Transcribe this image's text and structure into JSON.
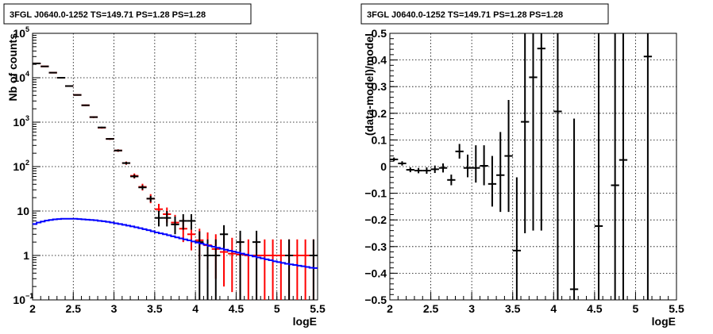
{
  "chart_data": [
    {
      "type": "scatter",
      "title": "3FGL J0640.0-1252 TS=149.71 PS=1.28 PS=1.28",
      "xlabel": "logE",
      "ylabel": "Nb of counts",
      "xlim": [
        2,
        5.5
      ],
      "ylim": [
        0.1,
        100000
      ],
      "yscale": "log",
      "grid": true,
      "x_ticks": [
        2,
        2.5,
        3,
        3.5,
        4,
        4.5,
        5,
        5.5
      ],
      "x_tick_labels": [
        "2",
        "2.5",
        "3",
        "3.5",
        "4",
        "4.5",
        "5",
        "5.5"
      ],
      "y_tick_labels": [
        {
          "value": 0.1,
          "label": "10",
          "exp": "−1"
        },
        {
          "value": 1,
          "label": "1",
          "exp": ""
        },
        {
          "value": 10,
          "label": "10",
          "exp": ""
        },
        {
          "value": 100,
          "label": "10",
          "exp": "2"
        },
        {
          "value": 1000,
          "label": "10",
          "exp": "3"
        },
        {
          "value": 10000,
          "label": "10",
          "exp": "4"
        },
        {
          "value": 100000,
          "label": "10",
          "exp": "5"
        }
      ],
      "bin_width": 0.1,
      "series": [
        {
          "color": "#ff0000",
          "points": [
            {
              "x": 2.05,
              "y": 21000,
              "ylo": 20500,
              "yhi": 21500
            },
            {
              "x": 2.15,
              "y": 18000,
              "ylo": 17600,
              "yhi": 18400
            },
            {
              "x": 2.25,
              "y": 13000,
              "ylo": 12700,
              "yhi": 13300
            },
            {
              "x": 2.35,
              "y": 10000,
              "ylo": 9800,
              "yhi": 10200
            },
            {
              "x": 2.45,
              "y": 6500,
              "ylo": 6300,
              "yhi": 6700
            },
            {
              "x": 2.55,
              "y": 4100,
              "ylo": 3950,
              "yhi": 4250
            },
            {
              "x": 2.65,
              "y": 2400,
              "ylo": 2300,
              "yhi": 2500
            },
            {
              "x": 2.75,
              "y": 1300,
              "ylo": 1240,
              "yhi": 1360
            },
            {
              "x": 2.85,
              "y": 750,
              "ylo": 715,
              "yhi": 785
            },
            {
              "x": 2.95,
              "y": 420,
              "ylo": 400,
              "yhi": 440
            },
            {
              "x": 3.05,
              "y": 230,
              "ylo": 215,
              "yhi": 245
            },
            {
              "x": 3.15,
              "y": 120,
              "ylo": 110,
              "yhi": 130
            },
            {
              "x": 3.25,
              "y": 62,
              "ylo": 54,
              "yhi": 70
            },
            {
              "x": 3.35,
              "y": 35,
              "ylo": 29,
              "yhi": 41
            },
            {
              "x": 3.45,
              "y": 19,
              "ylo": 15,
              "yhi": 24
            },
            {
              "x": 3.55,
              "y": 11,
              "ylo": 7.5,
              "yhi": 14.5
            },
            {
              "x": 3.65,
              "y": 8.5,
              "ylo": 5.5,
              "yhi": 12
            },
            {
              "x": 3.75,
              "y": 5.5,
              "ylo": 3.2,
              "yhi": 8.2
            },
            {
              "x": 3.85,
              "y": 4,
              "ylo": 2,
              "yhi": 6.5
            },
            {
              "x": 3.95,
              "y": 3,
              "ylo": 1.3,
              "yhi": 5
            },
            {
              "x": 4.05,
              "y": 2.2,
              "ylo": 0.8,
              "yhi": 4
            },
            {
              "x": 4.15,
              "y": 1.7,
              "ylo": 0.5,
              "yhi": 3.3
            },
            {
              "x": 4.25,
              "y": 1.4,
              "ylo": 0.3,
              "yhi": 3
            },
            {
              "x": 4.35,
              "y": 1.2,
              "ylo": 0.2,
              "yhi": 2.7
            },
            {
              "x": 4.45,
              "y": 1.1,
              "ylo": 0.15,
              "yhi": 2.5
            },
            {
              "x": 4.55,
              "y": 1.05,
              "ylo": 0.1,
              "yhi": 2.4
            },
            {
              "x": 4.65,
              "y": 1,
              "ylo": 0.1,
              "yhi": 2.3
            },
            {
              "x": 4.75,
              "y": 1,
              "ylo": 0.1,
              "yhi": 2.3
            },
            {
              "x": 4.85,
              "y": 1,
              "ylo": 0.1,
              "yhi": 2.3
            },
            {
              "x": 4.95,
              "y": 1,
              "ylo": 0.1,
              "yhi": 2.3
            },
            {
              "x": 5.05,
              "y": 1,
              "ylo": 0.1,
              "yhi": 2.3
            },
            {
              "x": 5.15,
              "y": 1,
              "ylo": 0.1,
              "yhi": 2.3
            },
            {
              "x": 5.25,
              "y": 1,
              "ylo": 0.1,
              "yhi": 2.3
            },
            {
              "x": 5.35,
              "y": 1,
              "ylo": 0.1,
              "yhi": 2.3
            },
            {
              "x": 5.45,
              "y": 1,
              "ylo": 0.1,
              "yhi": 2.3
            }
          ]
        },
        {
          "color": "#000000",
          "points": [
            {
              "x": 2.05,
              "y": 21000,
              "ylo": 20800,
              "yhi": 21200
            },
            {
              "x": 2.15,
              "y": 18000,
              "ylo": 17800,
              "yhi": 18200
            },
            {
              "x": 2.25,
              "y": 13000,
              "ylo": 12800,
              "yhi": 13200
            },
            {
              "x": 2.35,
              "y": 10000,
              "ylo": 9850,
              "yhi": 10150
            },
            {
              "x": 2.45,
              "y": 6500,
              "ylo": 6380,
              "yhi": 6620
            },
            {
              "x": 2.55,
              "y": 4100,
              "ylo": 4000,
              "yhi": 4200
            },
            {
              "x": 2.65,
              "y": 2400,
              "ylo": 2330,
              "yhi": 2470
            },
            {
              "x": 2.75,
              "y": 1300,
              "ylo": 1260,
              "yhi": 1340
            },
            {
              "x": 2.85,
              "y": 760,
              "ylo": 735,
              "yhi": 785
            },
            {
              "x": 2.95,
              "y": 420,
              "ylo": 405,
              "yhi": 435
            },
            {
              "x": 3.05,
              "y": 230,
              "ylo": 218,
              "yhi": 242
            },
            {
              "x": 3.15,
              "y": 120,
              "ylo": 112,
              "yhi": 128
            },
            {
              "x": 3.25,
              "y": 60,
              "ylo": 55,
              "yhi": 66
            },
            {
              "x": 3.35,
              "y": 34,
              "ylo": 30,
              "yhi": 38
            },
            {
              "x": 3.45,
              "y": 19,
              "ylo": 16,
              "yhi": 22
            },
            {
              "x": 3.55,
              "y": 7,
              "ylo": 4.5,
              "yhi": 10
            },
            {
              "x": 3.65,
              "y": 7,
              "ylo": 4.5,
              "yhi": 10
            },
            {
              "x": 3.75,
              "y": 5,
              "ylo": 3,
              "yhi": 7.5
            },
            {
              "x": 3.85,
              "y": 6,
              "ylo": 3.8,
              "yhi": 8.5
            },
            {
              "x": 3.95,
              "y": 6,
              "ylo": 3.8,
              "yhi": 8.5
            },
            {
              "x": 4.05,
              "y": 2,
              "ylo": 0.1,
              "yhi": 3.5
            },
            {
              "x": 4.15,
              "y": 1,
              "ylo": 0.1,
              "yhi": 2.3
            },
            {
              "x": 4.25,
              "y": 1,
              "ylo": 0.1,
              "yhi": 2.3
            },
            {
              "x": 4.35,
              "y": 3,
              "ylo": 1.3,
              "yhi": 4.8
            },
            {
              "x": 4.55,
              "y": 2,
              "ylo": 0.1,
              "yhi": 3.6
            },
            {
              "x": 4.75,
              "y": 2,
              "ylo": 0.1,
              "yhi": 3.6
            },
            {
              "x": 5.15,
              "y": 1,
              "ylo": 0.1,
              "yhi": 2.3
            },
            {
              "x": 5.45,
              "y": 1,
              "ylo": 0.1,
              "yhi": 2.3
            }
          ]
        },
        {
          "color": "#0000ff",
          "style": "step",
          "bin_edges": [
            2.0,
            2.05,
            2.1,
            2.15,
            2.2,
            2.25,
            2.3,
            2.35,
            2.4,
            2.45,
            2.5,
            2.55,
            2.6,
            2.65,
            2.7,
            2.75,
            2.8,
            2.85,
            2.9,
            2.95,
            3.0,
            3.05,
            3.1,
            3.15,
            3.2,
            3.25,
            3.3,
            3.35,
            3.4,
            3.45,
            3.5,
            3.55,
            3.6,
            3.65,
            3.7,
            3.75,
            3.8,
            3.85,
            3.9,
            3.95,
            4.0,
            4.05,
            4.1,
            4.15,
            4.2,
            4.25,
            4.3,
            4.35,
            4.4,
            4.45,
            4.5,
            4.55,
            4.6,
            4.65,
            4.7,
            4.75,
            4.8,
            4.85,
            4.9,
            4.95,
            5.0,
            5.05,
            5.1,
            5.15,
            5.2,
            5.25,
            5.3,
            5.35,
            5.4,
            5.45,
            5.5
          ],
          "values": [
            5.1,
            5.5,
            5.8,
            6.1,
            6.3,
            6.5,
            6.6,
            6.7,
            6.7,
            6.7,
            6.7,
            6.6,
            6.5,
            6.4,
            6.3,
            6.2,
            6.0,
            5.9,
            5.7,
            5.5,
            5.3,
            5.1,
            4.9,
            4.7,
            4.5,
            4.3,
            4.1,
            3.9,
            3.7,
            3.5,
            3.3,
            3.15,
            3.0,
            2.85,
            2.7,
            2.55,
            2.42,
            2.3,
            2.18,
            2.06,
            1.95,
            1.85,
            1.75,
            1.65,
            1.57,
            1.49,
            1.42,
            1.35,
            1.28,
            1.22,
            1.16,
            1.1,
            1.05,
            1.0,
            0.95,
            0.9,
            0.86,
            0.82,
            0.78,
            0.74,
            0.71,
            0.68,
            0.65,
            0.63,
            0.61,
            0.59,
            0.57,
            0.55,
            0.53,
            0.52
          ]
        }
      ]
    },
    {
      "type": "scatter",
      "title": "3FGL J0640.0-1252 TS=149.71 PS=1.28 PS=1.28",
      "xlabel": "logE",
      "ylabel": "(data-model)/model",
      "xlim": [
        2,
        5.5
      ],
      "ylim": [
        -0.5,
        0.5
      ],
      "grid": true,
      "x_ticks": [
        2,
        2.5,
        3,
        3.5,
        4,
        4.5,
        5,
        5.5
      ],
      "x_tick_labels": [
        "2",
        "2.5",
        "3",
        "3.5",
        "4",
        "4.5",
        "5",
        "5.5"
      ],
      "y_ticks": [
        -0.5,
        -0.4,
        -0.3,
        -0.2,
        -0.1,
        0,
        0.1,
        0.2,
        0.3,
        0.4,
        0.5
      ],
      "y_tick_labels": [
        "−0.5",
        "−0.4",
        "−0.3",
        "−0.2",
        "−0.1",
        "0",
        "0.1",
        "0.2",
        "0.3",
        "0.4",
        "0.5"
      ],
      "bin_width": 0.1,
      "series": [
        {
          "color": "#000000",
          "points": [
            {
              "x": 2.05,
              "y": 0.027,
              "ylo": 0.02,
              "yhi": 0.034
            },
            {
              "x": 2.15,
              "y": 0.012,
              "ylo": 0.004,
              "yhi": 0.02
            },
            {
              "x": 2.25,
              "y": -0.012,
              "ylo": -0.021,
              "yhi": -0.003
            },
            {
              "x": 2.35,
              "y": -0.015,
              "ylo": -0.025,
              "yhi": -0.005
            },
            {
              "x": 2.45,
              "y": -0.015,
              "ylo": -0.027,
              "yhi": -0.003
            },
            {
              "x": 2.55,
              "y": -0.01,
              "ylo": -0.024,
              "yhi": 0.004
            },
            {
              "x": 2.65,
              "y": -0.005,
              "ylo": -0.022,
              "yhi": 0.012
            },
            {
              "x": 2.75,
              "y": -0.05,
              "ylo": -0.07,
              "yhi": -0.03
            },
            {
              "x": 2.85,
              "y": 0.057,
              "ylo": 0.03,
              "yhi": 0.085
            },
            {
              "x": 2.95,
              "y": -0.005,
              "ylo": -0.04,
              "yhi": 0.045
            },
            {
              "x": 3.05,
              "y": -0.005,
              "ylo": -0.06,
              "yhi": 0.08
            },
            {
              "x": 3.15,
              "y": 0.003,
              "ylo": -0.07,
              "yhi": 0.08
            },
            {
              "x": 3.25,
              "y": -0.065,
              "ylo": -0.15,
              "yhi": 0.04
            },
            {
              "x": 3.35,
              "y": -0.032,
              "ylo": -0.17,
              "yhi": 0.13
            },
            {
              "x": 3.45,
              "y": 0.04,
              "ylo": -0.17,
              "yhi": 0.25
            },
            {
              "x": 3.55,
              "y": -0.315,
              "ylo": -0.56,
              "yhi": -0.04
            },
            {
              "x": 3.65,
              "y": 0.168,
              "ylo": -0.25,
              "yhi": 0.56
            },
            {
              "x": 3.75,
              "y": 0.335,
              "ylo": -0.24,
              "yhi": 0.56
            },
            {
              "x": 3.85,
              "y": 0.443,
              "ylo": -0.24,
              "yhi": 0.56
            },
            {
              "x": 4.05,
              "y": 0.207,
              "ylo": -0.56,
              "yhi": 0.56
            },
            {
              "x": 4.25,
              "y": -0.46,
              "ylo": -0.56,
              "yhi": 0.18
            },
            {
              "x": 4.55,
              "y": -0.223,
              "ylo": -0.56,
              "yhi": 0.56
            },
            {
              "x": 4.75,
              "y": -0.07,
              "ylo": -0.56,
              "yhi": 0.56
            },
            {
              "x": 4.85,
              "y": 0.025,
              "ylo": -0.56,
              "yhi": 0.56
            },
            {
              "x": 5.15,
              "y": 0.413,
              "ylo": -0.56,
              "yhi": 0.56
            }
          ]
        }
      ]
    }
  ]
}
